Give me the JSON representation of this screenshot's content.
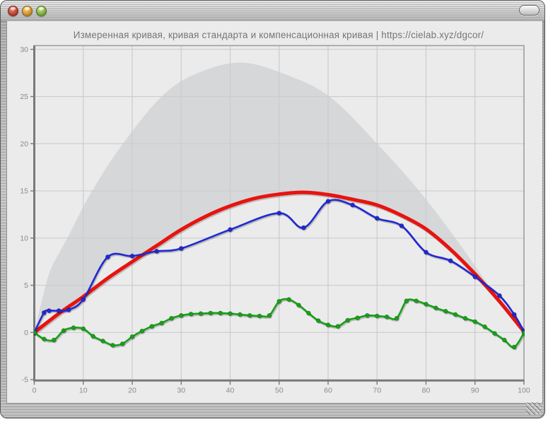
{
  "window": {
    "title": "",
    "buttons": [
      {
        "name": "close",
        "color": "#b9473a"
      },
      {
        "name": "minimize",
        "color": "#dda73b"
      },
      {
        "name": "zoom",
        "color": "#84b246"
      }
    ],
    "toolbar_toggle_icon": "lozenge",
    "resize_grip_icon": "diagonal-lines"
  },
  "chart_data": {
    "type": "line",
    "title": "Измеренная кривая, кривая стандарта и компенсационная кривая | https://cielab.xyz/dgcor/",
    "xlabel": "",
    "ylabel": "",
    "x_axis": {
      "min": 0,
      "max": 100,
      "ticks": [
        0,
        10,
        20,
        30,
        40,
        50,
        60,
        70,
        80,
        90,
        100
      ]
    },
    "y_axis": {
      "min": -5,
      "max": 30,
      "ticks": [
        -5,
        0,
        5,
        10,
        15,
        20,
        25,
        30
      ]
    },
    "grid": true,
    "legend_position": "none",
    "colors": {
      "plot_background": "#ebebec",
      "tolerance_area": "#d6d7d8",
      "gridline": "#cbccce",
      "frame": "#9c9ea0",
      "axis": "#77797b",
      "tick_label": "#8a8a8a",
      "title": "#757575",
      "standard": "#e8130f",
      "measured": "#2028d2",
      "compensation": "#17a017"
    },
    "series": [
      {
        "name": "tolerance-area",
        "label": "",
        "type": "area",
        "color": "#d6d7d8",
        "markers": false,
        "points": [
          [
            0,
            0
          ],
          [
            1.5,
            3.3
          ],
          [
            3.2,
            6.5
          ],
          [
            5.6,
            8.9
          ],
          [
            7.1,
            10.35
          ],
          [
            11.8,
            15
          ],
          [
            18.1,
            20
          ],
          [
            26,
            25
          ],
          [
            33,
            27.4
          ],
          [
            42,
            28.6
          ],
          [
            51,
            27.4
          ],
          [
            60.3,
            25
          ],
          [
            70,
            20
          ],
          [
            78.6,
            15
          ],
          [
            86,
            10
          ],
          [
            92.8,
            5
          ],
          [
            100,
            0
          ]
        ]
      },
      {
        "name": "standard-curve",
        "label": "кривая стандарта",
        "type": "line",
        "color": "#e8130f",
        "width": 5,
        "markers": false,
        "points": [
          [
            0,
            0
          ],
          [
            5,
            2.0
          ],
          [
            10,
            3.8
          ],
          [
            15,
            5.75
          ],
          [
            20,
            7.5
          ],
          [
            25,
            9.2
          ],
          [
            30,
            10.9
          ],
          [
            35,
            12.3
          ],
          [
            40,
            13.4
          ],
          [
            45,
            14.2
          ],
          [
            50,
            14.65
          ],
          [
            55,
            14.85
          ],
          [
            60,
            14.6
          ],
          [
            65,
            14.1
          ],
          [
            70,
            13.5
          ],
          [
            75,
            12.4
          ],
          [
            80,
            10.95
          ],
          [
            85,
            8.8
          ],
          [
            90,
            6.2
          ],
          [
            95,
            3.3
          ],
          [
            100,
            0.1
          ]
        ]
      },
      {
        "name": "measured-curve",
        "label": "Измеренная кривая",
        "type": "line",
        "color": "#2028d2",
        "width": 2.6,
        "markers": true,
        "points": [
          [
            0,
            0
          ],
          [
            2,
            2.1
          ],
          [
            3,
            2.3
          ],
          [
            5,
            2.3
          ],
          [
            7,
            2.4
          ],
          [
            10,
            3.5
          ],
          [
            15,
            8.0
          ],
          [
            20,
            8.1
          ],
          [
            25,
            8.6
          ],
          [
            30,
            8.9
          ],
          [
            40,
            10.9
          ],
          [
            50,
            12.65
          ],
          [
            55,
            11.1
          ],
          [
            60,
            13.9
          ],
          [
            65,
            13.5
          ],
          [
            70,
            12.1
          ],
          [
            75,
            11.3
          ],
          [
            80,
            8.5
          ],
          [
            85,
            7.6
          ],
          [
            90,
            5.9
          ],
          [
            95,
            3.9
          ],
          [
            98,
            1.9
          ],
          [
            100,
            0.1
          ]
        ]
      },
      {
        "name": "compensation-curve",
        "label": "компенсационная кривая",
        "type": "line",
        "color": "#17a017",
        "width": 2.6,
        "markers": true,
        "points": [
          [
            0,
            0
          ],
          [
            2,
            -0.7
          ],
          [
            4,
            -0.8
          ],
          [
            6,
            0.2
          ],
          [
            8,
            0.5
          ],
          [
            10,
            0.4
          ],
          [
            12,
            -0.4
          ],
          [
            14,
            -0.9
          ],
          [
            16,
            -1.35
          ],
          [
            18,
            -1.2
          ],
          [
            20,
            -0.45
          ],
          [
            22,
            0.15
          ],
          [
            24,
            0.65
          ],
          [
            26,
            1.0
          ],
          [
            28,
            1.5
          ],
          [
            30,
            1.8
          ],
          [
            32,
            1.95
          ],
          [
            34,
            2.0
          ],
          [
            36,
            2.05
          ],
          [
            38,
            2.05
          ],
          [
            40,
            2.0
          ],
          [
            42,
            1.9
          ],
          [
            44,
            1.8
          ],
          [
            46,
            1.75
          ],
          [
            48,
            1.8
          ],
          [
            50,
            3.3
          ],
          [
            52,
            3.5
          ],
          [
            54,
            2.9
          ],
          [
            56,
            2.05
          ],
          [
            58,
            1.25
          ],
          [
            60,
            0.8
          ],
          [
            62,
            0.65
          ],
          [
            64,
            1.3
          ],
          [
            66,
            1.55
          ],
          [
            68,
            1.8
          ],
          [
            70,
            1.75
          ],
          [
            72,
            1.65
          ],
          [
            74,
            1.5
          ],
          [
            76,
            3.35
          ],
          [
            78,
            3.35
          ],
          [
            80,
            3.0
          ],
          [
            82,
            2.6
          ],
          [
            84,
            2.25
          ],
          [
            86,
            1.9
          ],
          [
            88,
            1.5
          ],
          [
            90,
            1.15
          ],
          [
            92,
            0.6
          ],
          [
            94,
            -0.1
          ],
          [
            96,
            -0.8
          ],
          [
            98,
            -1.55
          ],
          [
            100,
            -0.05
          ]
        ]
      }
    ]
  }
}
